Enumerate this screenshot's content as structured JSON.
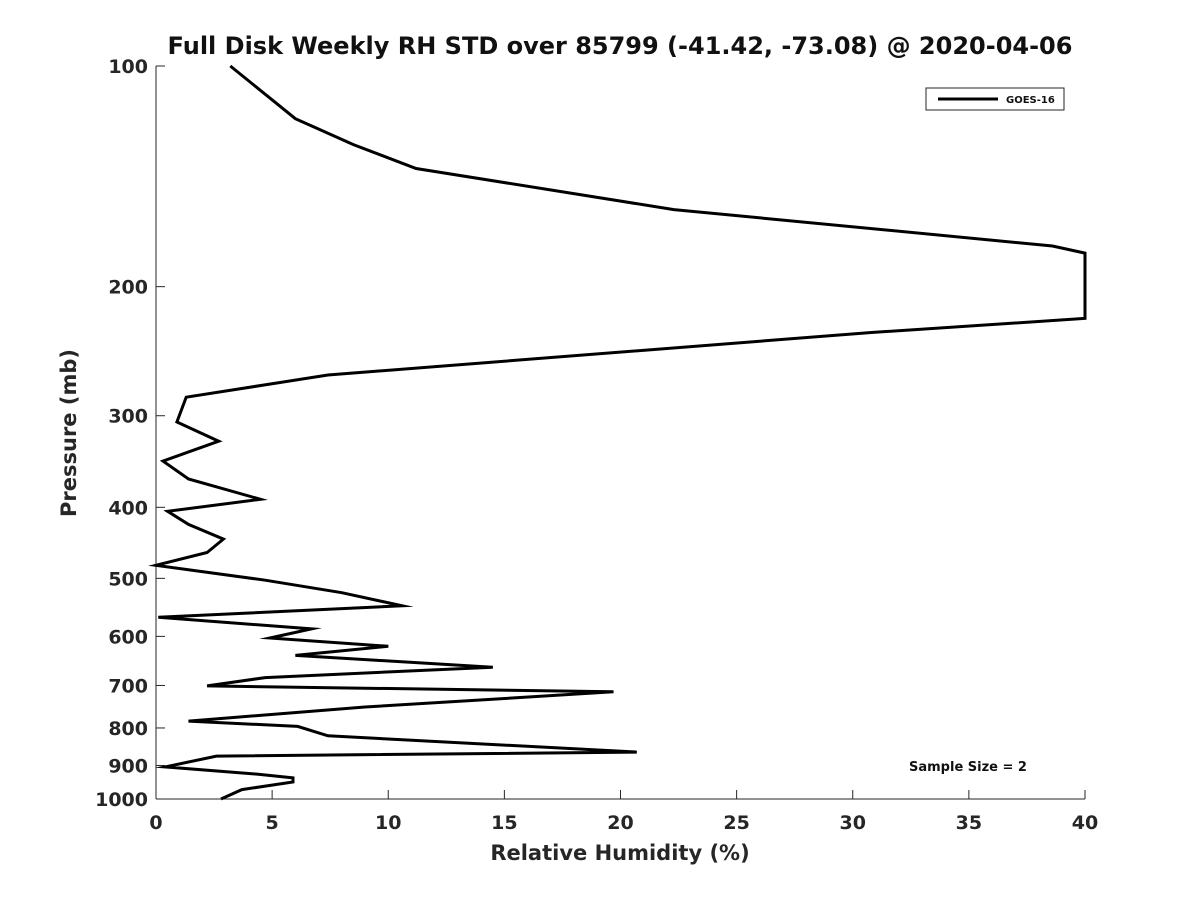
{
  "chart_data": {
    "type": "line",
    "title": "Full Disk Weekly RH STD over 85799 (-41.42, -73.08) @ 2020-04-06",
    "xlabel": "Relative Humidity (%)",
    "ylabel": "Pressure (mb)",
    "xlim": [
      0,
      40
    ],
    "ylim": [
      100,
      1000
    ],
    "yscale": "log",
    "yreversed": true,
    "x_ticks": [
      0,
      5,
      10,
      15,
      20,
      25,
      30,
      35,
      40
    ],
    "x_tick_labels": [
      "0",
      "5",
      "10",
      "15",
      "20",
      "25",
      "30",
      "35",
      "40"
    ],
    "y_ticks": [
      100,
      200,
      300,
      400,
      500,
      600,
      700,
      800,
      900,
      1000
    ],
    "y_tick_labels": [
      "100",
      "200",
      "300",
      "400",
      "500",
      "600",
      "700",
      "800",
      "900",
      "1000"
    ],
    "legend": {
      "placement": "top-right",
      "entries": [
        "GOES-16"
      ]
    },
    "annotation": "Sample Size = 2",
    "series": [
      {
        "name": "GOES-16",
        "color": "#000000",
        "points": [
          [
            3.2,
            100
          ],
          [
            6.0,
            118
          ],
          [
            8.5,
            128
          ],
          [
            11.2,
            138
          ],
          [
            22.3,
            157
          ],
          [
            38.6,
            176
          ],
          [
            40.0,
            180
          ],
          [
            40.0,
            221
          ],
          [
            30.8,
            231
          ],
          [
            7.4,
            264
          ],
          [
            1.3,
            283
          ],
          [
            0.9,
            306
          ],
          [
            2.7,
            325
          ],
          [
            0.3,
            346
          ],
          [
            1.4,
            366
          ],
          [
            4.5,
            390
          ],
          [
            0.5,
            405
          ],
          [
            1.4,
            422
          ],
          [
            2.9,
            442
          ],
          [
            2.2,
            461
          ],
          [
            0.0,
            480
          ],
          [
            4.7,
            503
          ],
          [
            8.0,
            523
          ],
          [
            10.6,
            545
          ],
          [
            0.1,
            565
          ],
          [
            6.7,
            586
          ],
          [
            4.9,
            603
          ],
          [
            10.0,
            619
          ],
          [
            6.0,
            637
          ],
          [
            14.5,
            661
          ],
          [
            4.7,
            683
          ],
          [
            2.2,
            701
          ],
          [
            19.7,
            714
          ],
          [
            9.0,
            749
          ],
          [
            1.4,
            783
          ],
          [
            6.1,
            796
          ],
          [
            7.4,
            820
          ],
          [
            20.7,
            863
          ],
          [
            2.6,
            874
          ],
          [
            0.4,
            904
          ],
          [
            4.4,
            925
          ],
          [
            5.9,
            936
          ],
          [
            5.9,
            948
          ],
          [
            3.7,
            971
          ],
          [
            2.8,
            1000
          ]
        ]
      }
    ]
  }
}
